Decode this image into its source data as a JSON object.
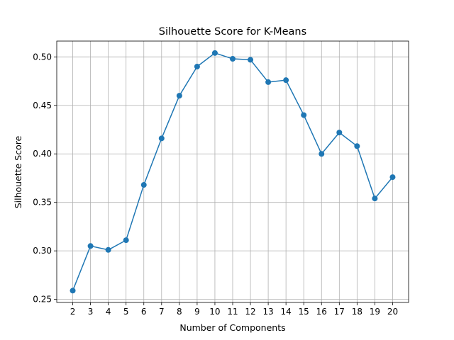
{
  "chart_data": {
    "type": "line",
    "title": "Silhouette Score for K-Means",
    "xlabel": "Number of Components",
    "ylabel": "Silhouette Score",
    "x": [
      2,
      3,
      4,
      5,
      6,
      7,
      8,
      9,
      10,
      11,
      12,
      13,
      14,
      15,
      16,
      17,
      18,
      19,
      20
    ],
    "series": [
      {
        "values": [
          0.259,
          0.305,
          0.301,
          0.311,
          0.368,
          0.416,
          0.46,
          0.49,
          0.504,
          0.498,
          0.497,
          0.474,
          0.476,
          0.44,
          0.4,
          0.422,
          0.408,
          0.354,
          0.376
        ],
        "color": "#1f77b4",
        "marker": "circle"
      }
    ],
    "xlim": [
      1.1,
      20.9
    ],
    "ylim": [
      0.2468,
      0.5163
    ],
    "xticks": [
      "2",
      "3",
      "4",
      "5",
      "6",
      "7",
      "8",
      "9",
      "10",
      "11",
      "12",
      "13",
      "14",
      "15",
      "16",
      "17",
      "18",
      "19",
      "20"
    ],
    "yticks": [
      "0.25",
      "0.30",
      "0.35",
      "0.40",
      "0.45",
      "0.50"
    ],
    "grid": true,
    "legend": "none"
  }
}
